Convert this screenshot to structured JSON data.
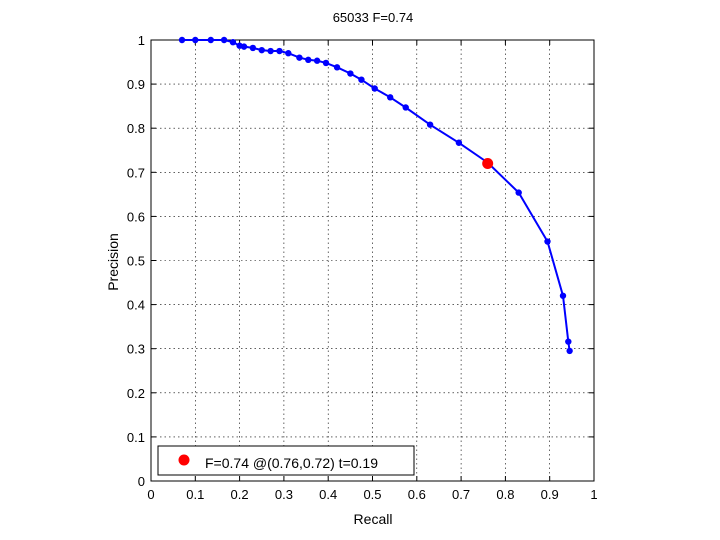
{
  "chart_data": {
    "type": "line",
    "title": "65033 F=0.74",
    "xlabel": "Recall",
    "ylabel": "Precision",
    "xlim": [
      0,
      1
    ],
    "ylim": [
      0,
      1
    ],
    "grid": true,
    "xticks": [
      "0",
      "0.1",
      "0.2",
      "0.3",
      "0.4",
      "0.5",
      "0.6",
      "0.7",
      "0.8",
      "0.9",
      "1"
    ],
    "yticks": [
      "0",
      "0.1",
      "0.2",
      "0.3",
      "0.4",
      "0.5",
      "0.6",
      "0.7",
      "0.8",
      "0.9",
      "1"
    ],
    "series": [
      {
        "color": "#0000ff",
        "marker": "circle",
        "points": [
          [
            0.07,
            1.0
          ],
          [
            0.1,
            1.0
          ],
          [
            0.135,
            1.0
          ],
          [
            0.165,
            1.0
          ],
          [
            0.185,
            0.995
          ],
          [
            0.2,
            0.987
          ],
          [
            0.21,
            0.985
          ],
          [
            0.23,
            0.982
          ],
          [
            0.25,
            0.977
          ],
          [
            0.27,
            0.975
          ],
          [
            0.29,
            0.975
          ],
          [
            0.31,
            0.97
          ],
          [
            0.335,
            0.96
          ],
          [
            0.355,
            0.955
          ],
          [
            0.375,
            0.953
          ],
          [
            0.395,
            0.948
          ],
          [
            0.42,
            0.938
          ],
          [
            0.45,
            0.924
          ],
          [
            0.475,
            0.91
          ],
          [
            0.505,
            0.89
          ],
          [
            0.54,
            0.87
          ],
          [
            0.575,
            0.847
          ],
          [
            0.63,
            0.808
          ],
          [
            0.695,
            0.767
          ],
          [
            0.76,
            0.722
          ],
          [
            0.83,
            0.654
          ],
          [
            0.895,
            0.543
          ],
          [
            0.93,
            0.42
          ],
          [
            0.942,
            0.316
          ],
          [
            0.945,
            0.295
          ]
        ]
      }
    ],
    "highlight": {
      "x": 0.76,
      "y": 0.72,
      "color": "#ff0000"
    },
    "legend": {
      "position": "bottom-left",
      "label": "F=0.74 @(0.76,0.72) t=0.19"
    }
  }
}
